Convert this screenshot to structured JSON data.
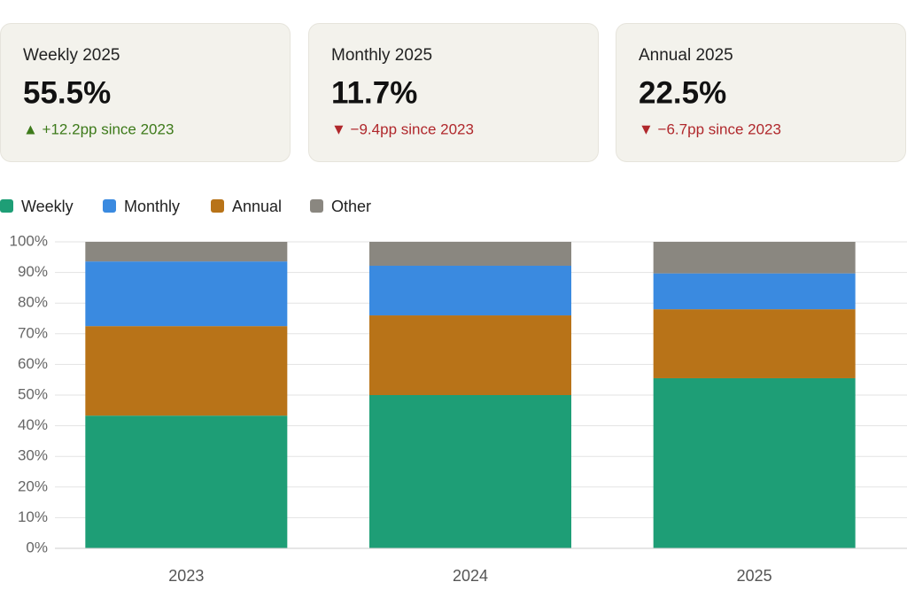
{
  "cards": [
    {
      "label": "Weekly 2025",
      "value": "55.5%",
      "change": "▲ +12.2pp since 2023",
      "color": "#3d7a1a"
    },
    {
      "label": "Monthly 2025",
      "value": "11.7%",
      "change": "▼ −9.4pp since 2023",
      "color": "#b0282c"
    },
    {
      "label": "Annual 2025",
      "value": "22.5%",
      "change": "▼ −6.7pp since 2023",
      "color": "#b0282c"
    }
  ],
  "chart_data": {
    "type": "stacked-bar",
    "categories": [
      "2023",
      "2024",
      "2025"
    ],
    "series": [
      {
        "name": "Weekly",
        "color": "#1e9e76",
        "values": [
          43.3,
          50.0,
          55.5
        ]
      },
      {
        "name": "Monthly",
        "color": "#3a8ae0",
        "values": [
          21.1,
          16.2,
          11.7
        ]
      },
      {
        "name": "Annual",
        "color": "#b87318",
        "values": [
          29.2,
          26.0,
          22.5
        ]
      },
      {
        "name": "Other",
        "color": "#8a8780",
        "values": [
          6.4,
          7.8,
          10.3
        ]
      }
    ],
    "ylim": [
      0,
      100
    ],
    "yticks": [
      {
        "value": 0,
        "label": "0%"
      },
      {
        "value": 10,
        "label": "10%"
      },
      {
        "value": 20,
        "label": "20%"
      },
      {
        "value": 30,
        "label": "30%"
      },
      {
        "value": 40,
        "label": "40%"
      },
      {
        "value": 50,
        "label": "50%"
      },
      {
        "value": 60,
        "label": "60%"
      },
      {
        "value": 70,
        "label": "70%"
      },
      {
        "value": 80,
        "label": "80%"
      },
      {
        "value": 90,
        "label": "90%"
      },
      {
        "value": 100,
        "label": "100%"
      }
    ],
    "grid": true
  }
}
